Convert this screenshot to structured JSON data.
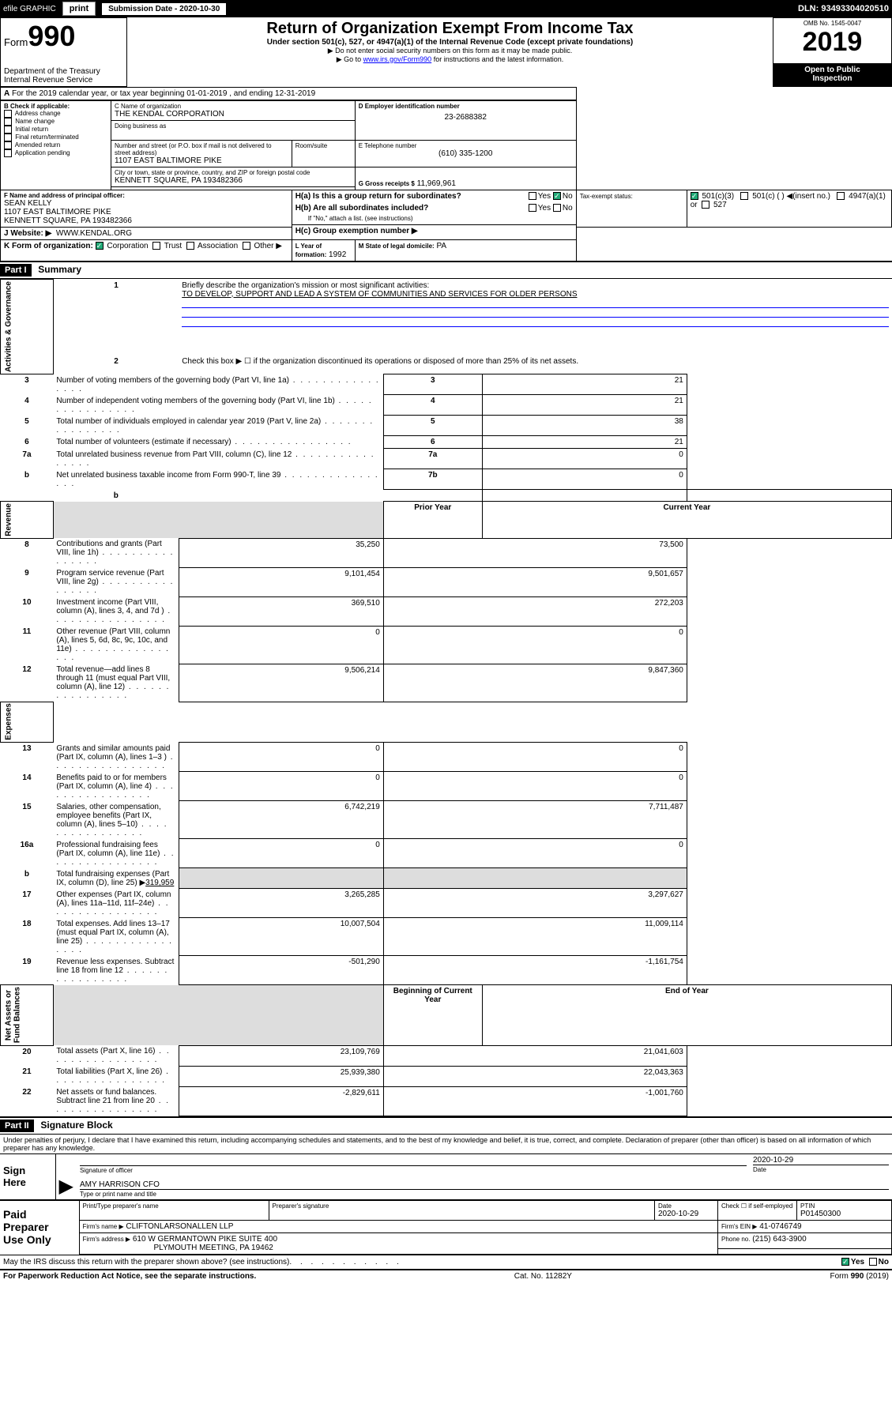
{
  "topbar": {
    "efile": "efile GRAPHIC",
    "print": "print",
    "submission": "Submission Date - 2020-10-30",
    "dln": "DLN: 93493304020510"
  },
  "header": {
    "form_prefix": "Form",
    "form_no": "990",
    "title": "Return of Organization Exempt From Income Tax",
    "subtitle": "Under section 501(c), 527, or 4947(a)(1) of the Internal Revenue Code (except private foundations)",
    "note1": "▶ Do not enter social security numbers on this form as it may be made public.",
    "note2_pre": "▶ Go to ",
    "note2_link": "www.irs.gov/Form990",
    "note2_post": " for instructions and the latest information.",
    "dept": "Department of the Treasury\nInternal Revenue Service",
    "omb": "OMB No. 1545-0047",
    "year": "2019",
    "open": "Open to Public\nInspection"
  },
  "periodA": "For the 2019 calendar year, or tax year beginning 01-01-2019    , and ending 12-31-2019",
  "boxB": {
    "label": "B Check if applicable:",
    "items": [
      "Address change",
      "Name change",
      "Initial return",
      "Final return/terminated",
      "Amended return",
      "Application pending"
    ]
  },
  "boxC": {
    "name_label": "C Name of organization",
    "name": "THE KENDAL CORPORATION",
    "dba_label": "Doing business as",
    "addr_label": "Number and street (or P.O. box if mail is not delivered to street address)",
    "room_label": "Room/suite",
    "addr": "1107 EAST BALTIMORE PIKE",
    "city_label": "City or town, state or province, country, and ZIP or foreign postal code",
    "city": "KENNETT SQUARE, PA  193482366"
  },
  "boxD": {
    "label": "D Employer identification number",
    "value": "23-2688382"
  },
  "boxE": {
    "label": "E Telephone number",
    "value": "(610) 335-1200"
  },
  "boxG": {
    "label": "G Gross receipts $",
    "value": "11,969,961"
  },
  "boxF": {
    "label": "F Name and address of principal officer:",
    "name": "SEAN KELLY",
    "addr1": "1107 EAST BALTIMORE PIKE",
    "addr2": "KENNETT SQUARE, PA  193482366"
  },
  "boxH": {
    "a": "H(a)  Is this a group return for subordinates?",
    "b": "H(b)  Are all subordinates included?",
    "b_note": "If \"No,\" attach a list. (see instructions)",
    "c": "H(c)  Group exemption number ▶",
    "yes": "Yes",
    "no": "No"
  },
  "taxexempt": {
    "label": "Tax-exempt status:",
    "opt1": "501(c)(3)",
    "opt2": "501(c) (  ) ◀(insert no.)",
    "opt3": "4947(a)(1) or",
    "opt4": "527"
  },
  "boxJ": {
    "label": "J    Website: ▶",
    "value": "WWW.KENDAL.ORG"
  },
  "boxK": {
    "label": "K Form of organization:",
    "corp": "Corporation",
    "trust": "Trust",
    "assoc": "Association",
    "other": "Other ▶"
  },
  "boxL": {
    "label": "L Year of formation:",
    "value": "1992"
  },
  "boxM": {
    "label": "M State of legal domicile:",
    "value": "PA"
  },
  "part1": {
    "hdr": "Part I",
    "title": "Summary"
  },
  "governance": {
    "label": "Activities & Governance",
    "l1": "Briefly describe the organization's mission or most significant activities:",
    "l1v": "TO DEVELOP, SUPPORT AND LEAD A SYSTEM OF COMMUNITIES AND SERVICES FOR OLDER PERSONS",
    "l2": "Check this box ▶ ☐  if the organization discontinued its operations or disposed of more than 25% of its net assets.",
    "rows": [
      {
        "n": "3",
        "t": "Number of voting members of the governing body (Part VI, line 1a)",
        "b": "3",
        "v": "21"
      },
      {
        "n": "4",
        "t": "Number of independent voting members of the governing body (Part VI, line 1b)",
        "b": "4",
        "v": "21"
      },
      {
        "n": "5",
        "t": "Total number of individuals employed in calendar year 2019 (Part V, line 2a)",
        "b": "5",
        "v": "38"
      },
      {
        "n": "6",
        "t": "Total number of volunteers (estimate if necessary)",
        "b": "6",
        "v": "21"
      },
      {
        "n": "7a",
        "t": "Total unrelated business revenue from Part VIII, column (C), line 12",
        "b": "7a",
        "v": "0"
      },
      {
        "n": "b",
        "t": "Net unrelated business taxable income from Form 990-T, line 39",
        "b": "7b",
        "v": "0"
      }
    ]
  },
  "revenue": {
    "label": "Revenue",
    "hdr_prior": "Prior Year",
    "hdr_curr": "Current Year",
    "rows": [
      {
        "n": "8",
        "t": "Contributions and grants (Part VIII, line 1h)",
        "p": "35,250",
        "c": "73,500"
      },
      {
        "n": "9",
        "t": "Program service revenue (Part VIII, line 2g)",
        "p": "9,101,454",
        "c": "9,501,657"
      },
      {
        "n": "10",
        "t": "Investment income (Part VIII, column (A), lines 3, 4, and 7d )",
        "p": "369,510",
        "c": "272,203"
      },
      {
        "n": "11",
        "t": "Other revenue (Part VIII, column (A), lines 5, 6d, 8c, 9c, 10c, and 11e)",
        "p": "0",
        "c": "0"
      },
      {
        "n": "12",
        "t": "Total revenue—add lines 8 through 11 (must equal Part VIII, column (A), line 12)",
        "p": "9,506,214",
        "c": "9,847,360"
      }
    ]
  },
  "expenses": {
    "label": "Expenses",
    "rows": [
      {
        "n": "13",
        "t": "Grants and similar amounts paid (Part IX, column (A), lines 1–3 )",
        "p": "0",
        "c": "0"
      },
      {
        "n": "14",
        "t": "Benefits paid to or for members (Part IX, column (A), line 4)",
        "p": "0",
        "c": "0"
      },
      {
        "n": "15",
        "t": "Salaries, other compensation, employee benefits (Part IX, column (A), lines 5–10)",
        "p": "6,742,219",
        "c": "7,711,487"
      },
      {
        "n": "16a",
        "t": "Professional fundraising fees (Part IX, column (A), line 11e)",
        "p": "0",
        "c": "0"
      }
    ],
    "line_b": "Total fundraising expenses (Part IX, column (D), line 25) ▶",
    "line_b_val": "319,959",
    "rows2": [
      {
        "n": "17",
        "t": "Other expenses (Part IX, column (A), lines 11a–11d, 11f–24e)",
        "p": "3,265,285",
        "c": "3,297,627"
      },
      {
        "n": "18",
        "t": "Total expenses. Add lines 13–17 (must equal Part IX, column (A), line 25)",
        "p": "10,007,504",
        "c": "11,009,114"
      },
      {
        "n": "19",
        "t": "Revenue less expenses. Subtract line 18 from line 12",
        "p": "-501,290",
        "c": "-1,161,754"
      }
    ]
  },
  "netassets": {
    "label": "Net Assets or\nFund Balances",
    "hdr_beg": "Beginning of Current Year",
    "hdr_end": "End of Year",
    "rows": [
      {
        "n": "20",
        "t": "Total assets (Part X, line 16)",
        "p": "23,109,769",
        "c": "21,041,603"
      },
      {
        "n": "21",
        "t": "Total liabilities (Part X, line 26)",
        "p": "25,939,380",
        "c": "22,043,363"
      },
      {
        "n": "22",
        "t": "Net assets or fund balances. Subtract line 21 from line 20",
        "p": "-2,829,611",
        "c": "-1,001,760"
      }
    ]
  },
  "part2": {
    "hdr": "Part II",
    "title": "Signature Block"
  },
  "sig": {
    "jurat": "Under penalties of perjury, I declare that I have examined this return, including accompanying schedules and statements, and to the best of my knowledge and belief, it is true, correct, and complete. Declaration of preparer (other than officer) is based on all information of which preparer has any knowledge.",
    "sign_here": "Sign\nHere",
    "sig_officer": "Signature of officer",
    "date": "Date",
    "date_val": "2020-10-29",
    "name_title": "AMY HARRISON CFO",
    "name_label": "Type or print name and title"
  },
  "preparer": {
    "label": "Paid\nPreparer\nUse Only",
    "h1": "Print/Type preparer's name",
    "h2": "Preparer's signature",
    "h3": "Date",
    "h4": "Check ☐ if self-employed",
    "h5": "PTIN",
    "date": "2020-10-29",
    "ptin": "P01450300",
    "firm_name_l": "Firm's name    ▶",
    "firm_name": "CLIFTONLARSONALLEN LLP",
    "firm_ein_l": "Firm's EIN ▶",
    "firm_ein": "41-0746749",
    "firm_addr_l": "Firm's address ▶",
    "firm_addr": "610 W GERMANTOWN PIKE SUITE 400",
    "firm_city": "PLYMOUTH MEETING, PA  19462",
    "phone_l": "Phone no.",
    "phone": "(215) 643-3900"
  },
  "discuss": "May the IRS discuss this return with the preparer shown above? (see instructions)",
  "footer": {
    "left": "For Paperwork Reduction Act Notice, see the separate instructions.",
    "mid": "Cat. No. 11282Y",
    "right": "Form 990 (2019)"
  }
}
